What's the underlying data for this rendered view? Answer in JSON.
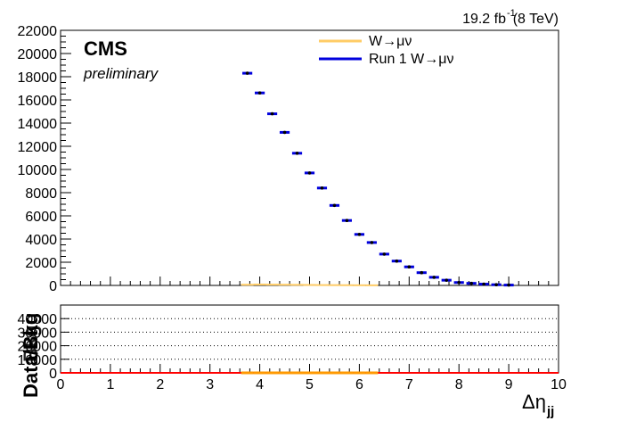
{
  "lumi_label": "19.2 fb",
  "lumi_exp": "-1",
  "lumi_energy": "(8 TeV)",
  "cms_label": "CMS",
  "cms_sub": "preliminary",
  "colors": {
    "mc": "#ffcc66",
    "data": "#0000dd",
    "ratio_fill": "#ff9900",
    "ratio_line": "#ff0000"
  },
  "chart_data": [
    {
      "type": "line",
      "title": "",
      "xlabel": "Δη",
      "xlabel_sub": "jj",
      "ylabel": "",
      "xlim": [
        0,
        10
      ],
      "ylim": [
        0,
        22000
      ],
      "xticks": [
        "0",
        "1",
        "2",
        "3",
        "4",
        "5",
        "6",
        "7",
        "8",
        "9",
        "10"
      ],
      "yticks": [
        "0",
        "2000",
        "4000",
        "6000",
        "8000",
        "10000",
        "12000",
        "14000",
        "16000",
        "18000",
        "20000",
        "22000"
      ],
      "legend": {
        "placement": "top-right",
        "entries": [
          {
            "label": "W→μν",
            "color": "#ffcc66"
          },
          {
            "label": "Run 1 W→μν",
            "color": "#0000dd"
          }
        ]
      },
      "series": [
        {
          "name": "Run 1 W→μν",
          "x": [
            3.75,
            4.0,
            4.25,
            4.5,
            4.75,
            5.0,
            5.25,
            5.5,
            5.75,
            6.0,
            6.25,
            6.5,
            6.75,
            7.0,
            7.25,
            7.5,
            7.75,
            8.0,
            8.25,
            8.5,
            8.75,
            9.0
          ],
          "y": [
            18300,
            16600,
            14800,
            13200,
            11400,
            9700,
            8400,
            6900,
            5600,
            4400,
            3700,
            2700,
            2100,
            1600,
            1100,
            700,
            450,
            250,
            180,
            110,
            60,
            30
          ],
          "xerr": 0.1
        },
        {
          "name": "W→μν",
          "x": [
            3.75,
            4.0,
            4.25,
            4.5,
            4.75,
            5.0,
            5.25,
            5.5,
            5.75,
            6.0,
            6.25
          ],
          "y": [
            60,
            80,
            70,
            60,
            50,
            40,
            30,
            25,
            20,
            15,
            10
          ],
          "xerr": 0.125
        }
      ]
    },
    {
      "type": "line",
      "title": "",
      "xlabel": "Δη",
      "xlabel_sub": "jj",
      "ylabel": "Data/Bkg",
      "xlim": [
        0,
        10
      ],
      "ylim": [
        0,
        50000
      ],
      "xticks": [
        "0",
        "1",
        "2",
        "3",
        "4",
        "5",
        "6",
        "7",
        "8",
        "9",
        "10"
      ],
      "yticks": [
        "0",
        "10000",
        "20000",
        "30000",
        "40000"
      ],
      "grid": true,
      "series": [
        {
          "name": "Data/Bkg",
          "x": [
            3.75,
            4.0,
            4.25,
            4.5,
            4.75,
            5.0,
            5.25,
            5.5,
            5.75,
            6.0,
            6.25
          ],
          "y": [
            0,
            0,
            0,
            0,
            0,
            0,
            0,
            0,
            0,
            0,
            0
          ]
        }
      ]
    }
  ]
}
